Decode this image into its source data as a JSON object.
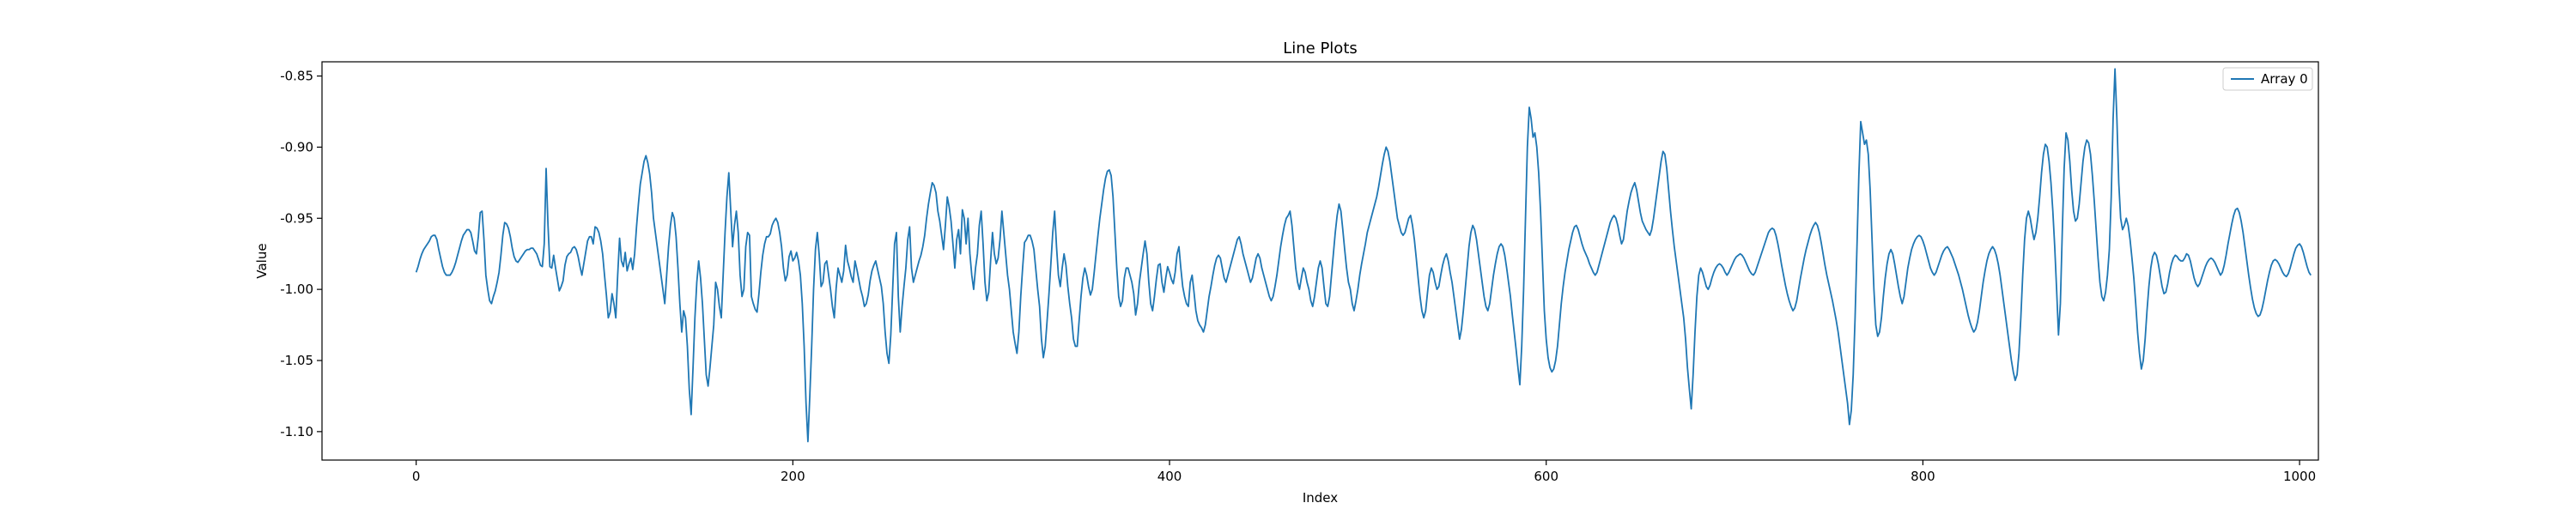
{
  "chart_data": {
    "type": "line",
    "title": "Line Plots",
    "xlabel": "Index",
    "ylabel": "Value",
    "xlim": [
      -50,
      1010
    ],
    "ylim": [
      -1.12,
      -0.84
    ],
    "xticks": [
      0,
      200,
      400,
      600,
      800,
      1000
    ],
    "yticks": [
      -1.1,
      -1.05,
      -1.0,
      -0.95,
      -0.9,
      -0.85
    ],
    "grid": false,
    "legend_position": "top-right",
    "colors": {
      "series": "#1f77b4",
      "axis": "#000000",
      "background": "#ffffff"
    },
    "series": [
      {
        "name": "Array 0",
        "x_start": 0,
        "x_step": 1,
        "values": [
          -0.988,
          -0.984,
          -0.979,
          -0.975,
          -0.972,
          -0.97,
          -0.968,
          -0.966,
          -0.963,
          -0.962,
          -0.962,
          -0.965,
          -0.972,
          -0.978,
          -0.984,
          -0.988,
          -0.99,
          -0.99,
          -0.99,
          -0.988,
          -0.985,
          -0.981,
          -0.976,
          -0.971,
          -0.966,
          -0.962,
          -0.96,
          -0.958,
          -0.958,
          -0.96,
          -0.966,
          -0.973,
          -0.975,
          -0.963,
          -0.946,
          -0.945,
          -0.965,
          -0.99,
          -1.0,
          -1.008,
          -1.01,
          -1.005,
          -1.001,
          -0.995,
          -0.988,
          -0.976,
          -0.962,
          -0.953,
          -0.954,
          -0.957,
          -0.963,
          -0.971,
          -0.977,
          -0.98,
          -0.981,
          -0.979,
          -0.977,
          -0.975,
          -0.973,
          -0.972,
          -0.972,
          -0.971,
          -0.971,
          -0.973,
          -0.975,
          -0.979,
          -0.983,
          -0.984,
          -0.968,
          -0.915,
          -0.955,
          -0.984,
          -0.985,
          -0.976,
          -0.985,
          -0.993,
          -1.001,
          -0.998,
          -0.994,
          -0.983,
          -0.977,
          -0.975,
          -0.974,
          -0.971,
          -0.97,
          -0.972,
          -0.977,
          -0.984,
          -0.99,
          -0.982,
          -0.974,
          -0.966,
          -0.963,
          -0.963,
          -0.968,
          -0.956,
          -0.957,
          -0.96,
          -0.966,
          -0.975,
          -0.99,
          -1.004,
          -1.02,
          -1.016,
          -1.003,
          -1.01,
          -1.02,
          -0.99,
          -0.964,
          -0.98,
          -0.984,
          -0.974,
          -0.987,
          -0.982,
          -0.978,
          -0.986,
          -0.975,
          -0.956,
          -0.94,
          -0.926,
          -0.918,
          -0.91,
          -0.906,
          -0.911,
          -0.919,
          -0.932,
          -0.95,
          -0.96,
          -0.97,
          -0.98,
          -0.99,
          -1.0,
          -1.01,
          -0.99,
          -0.97,
          -0.955,
          -0.946,
          -0.95,
          -0.963,
          -0.985,
          -1.01,
          -1.03,
          -1.015,
          -1.02,
          -1.04,
          -1.07,
          -1.088,
          -1.055,
          -1.02,
          -0.995,
          -0.98,
          -0.992,
          -1.01,
          -1.035,
          -1.06,
          -1.068,
          -1.055,
          -1.04,
          -1.025,
          -0.995,
          -1.0,
          -1.012,
          -1.02,
          -0.99,
          -0.96,
          -0.935,
          -0.918,
          -0.944,
          -0.97,
          -0.955,
          -0.945,
          -0.96,
          -0.99,
          -1.005,
          -1.0,
          -0.97,
          -0.96,
          -0.962,
          -1.005,
          -1.01,
          -1.014,
          -1.016,
          -1.003,
          -0.988,
          -0.976,
          -0.968,
          -0.963,
          -0.963,
          -0.961,
          -0.955,
          -0.952,
          -0.95,
          -0.953,
          -0.96,
          -0.97,
          -0.985,
          -0.994,
          -0.99,
          -0.977,
          -0.973,
          -0.98,
          -0.978,
          -0.974,
          -0.98,
          -0.99,
          -1.01,
          -1.04,
          -1.08,
          -1.107,
          -1.075,
          -1.04,
          -1.0,
          -0.972,
          -0.96,
          -0.976,
          -0.998,
          -0.995,
          -0.982,
          -0.98,
          -0.99,
          -1.0,
          -1.012,
          -1.02,
          -0.999,
          -0.985,
          -0.99,
          -0.995,
          -0.987,
          -0.969,
          -0.98,
          -0.985,
          -0.991,
          -0.995,
          -0.98,
          -0.986,
          -0.993,
          -1.0,
          -1.005,
          -1.012,
          -1.01,
          -1.004,
          -0.994,
          -0.987,
          -0.983,
          -0.98,
          -0.986,
          -0.992,
          -0.998,
          -1.01,
          -1.03,
          -1.045,
          -1.052,
          -1.032,
          -1.0,
          -0.968,
          -0.96,
          -1.005,
          -1.03,
          -1.012,
          -0.998,
          -0.985,
          -0.965,
          -0.956,
          -0.985,
          -0.995,
          -0.99,
          -0.985,
          -0.98,
          -0.976,
          -0.97,
          -0.962,
          -0.95,
          -0.94,
          -0.932,
          -0.925,
          -0.927,
          -0.932,
          -0.945,
          -0.952,
          -0.962,
          -0.972,
          -0.955,
          -0.935,
          -0.942,
          -0.952,
          -0.968,
          -0.985,
          -0.965,
          -0.958,
          -0.975,
          -0.944,
          -0.95,
          -0.968,
          -0.95,
          -0.975,
          -0.99,
          -1.0,
          -0.985,
          -0.975,
          -0.955,
          -0.945,
          -0.968,
          -0.995,
          -1.008,
          -1.002,
          -0.98,
          -0.96,
          -0.975,
          -0.982,
          -0.978,
          -0.965,
          -0.945,
          -0.96,
          -0.975,
          -0.99,
          -1.0,
          -1.015,
          -1.03,
          -1.038,
          -1.045,
          -1.03,
          -1.005,
          -0.985,
          -0.967,
          -0.965,
          -0.962,
          -0.962,
          -0.966,
          -0.972,
          -0.986,
          -1.0,
          -1.012,
          -1.035,
          -1.048,
          -1.04,
          -1.022,
          -1.003,
          -0.982,
          -0.96,
          -0.945,
          -0.97,
          -0.99,
          -0.998,
          -0.985,
          -0.975,
          -0.983,
          -0.998,
          -1.01,
          -1.02,
          -1.035,
          -1.04,
          -1.04,
          -1.022,
          -1.005,
          -0.992,
          -0.985,
          -0.99,
          -0.998,
          -1.004,
          -1.0,
          -0.988,
          -0.975,
          -0.962,
          -0.95,
          -0.94,
          -0.93,
          -0.922,
          -0.917,
          -0.916,
          -0.92,
          -0.935,
          -0.96,
          -0.985,
          -1.005,
          -1.012,
          -1.008,
          -0.992,
          -0.985,
          -0.985,
          -0.99,
          -0.995,
          -1.003,
          -1.018,
          -1.01,
          -0.995,
          -0.985,
          -0.975,
          -0.966,
          -0.975,
          -0.995,
          -1.01,
          -1.015,
          -1.005,
          -0.993,
          -0.983,
          -0.982,
          -0.995,
          -1.002,
          -0.992,
          -0.984,
          -0.988,
          -0.993,
          -0.996,
          -0.988,
          -0.975,
          -0.97,
          -0.985,
          -0.998,
          -1.005,
          -1.01,
          -1.012,
          -0.995,
          -0.99,
          -1.002,
          -1.015,
          -1.022,
          -1.025,
          -1.027,
          -1.03,
          -1.025,
          -1.015,
          -1.005,
          -0.998,
          -0.99,
          -0.983,
          -0.978,
          -0.976,
          -0.978,
          -0.985,
          -0.992,
          -0.995,
          -0.99,
          -0.985,
          -0.98,
          -0.975,
          -0.97,
          -0.965,
          -0.963,
          -0.968,
          -0.975,
          -0.98,
          -0.985,
          -0.99,
          -0.995,
          -0.992,
          -0.985,
          -0.978,
          -0.975,
          -0.978,
          -0.985,
          -0.99,
          -0.995,
          -1.0,
          -1.005,
          -1.008,
          -1.005,
          -0.998,
          -0.99,
          -0.98,
          -0.97,
          -0.962,
          -0.955,
          -0.95,
          -0.948,
          -0.945,
          -0.955,
          -0.97,
          -0.985,
          -0.995,
          -1.0,
          -0.992,
          -0.985,
          -0.988,
          -0.995,
          -1.0,
          -1.008,
          -1.012,
          -1.005,
          -0.995,
          -0.985,
          -0.98,
          -0.985,
          -0.998,
          -1.01,
          -1.012,
          -1.005,
          -0.99,
          -0.975,
          -0.96,
          -0.948,
          -0.94,
          -0.945,
          -0.958,
          -0.972,
          -0.985,
          -0.995,
          -1.0,
          -1.01,
          -1.015,
          -1.008,
          -1.0,
          -0.99,
          -0.982,
          -0.975,
          -0.968,
          -0.96,
          -0.955,
          -0.95,
          -0.945,
          -0.94,
          -0.935,
          -0.928,
          -0.92,
          -0.912,
          -0.905,
          -0.9,
          -0.903,
          -0.91,
          -0.92,
          -0.93,
          -0.94,
          -0.95,
          -0.955,
          -0.96,
          -0.962,
          -0.96,
          -0.955,
          -0.95,
          -0.948,
          -0.955,
          -0.965,
          -0.978,
          -0.992,
          -1.005,
          -1.015,
          -1.02,
          -1.015,
          -1.002,
          -0.99,
          -0.985,
          -0.988,
          -0.995,
          -1.0,
          -0.998,
          -0.99,
          -0.983,
          -0.978,
          -0.975,
          -0.98,
          -0.988,
          -0.995,
          -1.005,
          -1.015,
          -1.025,
          -1.035,
          -1.028,
          -1.015,
          -1.0,
          -0.985,
          -0.97,
          -0.96,
          -0.955,
          -0.958,
          -0.965,
          -0.975,
          -0.985,
          -0.995,
          -1.005,
          -1.012,
          -1.015,
          -1.01,
          -1.0,
          -0.99,
          -0.982,
          -0.975,
          -0.97,
          -0.968,
          -0.97,
          -0.976,
          -0.985,
          -0.995,
          -1.005,
          -1.018,
          -1.03,
          -1.042,
          -1.055,
          -1.067,
          -1.04,
          -1.0,
          -0.95,
          -0.9,
          -0.872,
          -0.88,
          -0.893,
          -0.89,
          -0.9,
          -0.918,
          -0.945,
          -0.98,
          -1.015,
          -1.035,
          -1.048,
          -1.055,
          -1.058,
          -1.056,
          -1.05,
          -1.04,
          -1.025,
          -1.01,
          -0.998,
          -0.988,
          -0.98,
          -0.972,
          -0.966,
          -0.96,
          -0.956,
          -0.955,
          -0.958,
          -0.963,
          -0.968,
          -0.972,
          -0.975,
          -0.978,
          -0.982,
          -0.985,
          -0.988,
          -0.99,
          -0.988,
          -0.983,
          -0.978,
          -0.973,
          -0.968,
          -0.963,
          -0.958,
          -0.953,
          -0.95,
          -0.948,
          -0.95,
          -0.955,
          -0.962,
          -0.968,
          -0.965,
          -0.955,
          -0.945,
          -0.938,
          -0.932,
          -0.928,
          -0.925,
          -0.93,
          -0.938,
          -0.946,
          -0.952,
          -0.955,
          -0.958,
          -0.96,
          -0.962,
          -0.958,
          -0.95,
          -0.94,
          -0.93,
          -0.92,
          -0.91,
          -0.903,
          -0.905,
          -0.915,
          -0.93,
          -0.945,
          -0.958,
          -0.97,
          -0.98,
          -0.99,
          -1.0,
          -1.01,
          -1.02,
          -1.035,
          -1.055,
          -1.07,
          -1.084,
          -1.06,
          -1.03,
          -1.005,
          -0.99,
          -0.985,
          -0.988,
          -0.993,
          -0.998,
          -1.0,
          -0.997,
          -0.992,
          -0.988,
          -0.985,
          -0.983,
          -0.982,
          -0.983,
          -0.985,
          -0.988,
          -0.99,
          -0.988,
          -0.985,
          -0.982,
          -0.979,
          -0.977,
          -0.976,
          -0.975,
          -0.976,
          -0.978,
          -0.981,
          -0.984,
          -0.987,
          -0.989,
          -0.99,
          -0.988,
          -0.984,
          -0.98,
          -0.976,
          -0.972,
          -0.968,
          -0.964,
          -0.96,
          -0.958,
          -0.957,
          -0.958,
          -0.962,
          -0.968,
          -0.975,
          -0.983,
          -0.99,
          -0.997,
          -1.003,
          -1.008,
          -1.012,
          -1.015,
          -1.013,
          -1.008,
          -1.0,
          -0.992,
          -0.985,
          -0.978,
          -0.972,
          -0.967,
          -0.962,
          -0.958,
          -0.955,
          -0.953,
          -0.955,
          -0.96,
          -0.967,
          -0.975,
          -0.983,
          -0.99,
          -0.996,
          -1.002,
          -1.008,
          -1.015,
          -1.022,
          -1.03,
          -1.04,
          -1.05,
          -1.06,
          -1.07,
          -1.08,
          -1.095,
          -1.085,
          -1.06,
          -1.02,
          -0.97,
          -0.92,
          -0.882,
          -0.89,
          -0.898,
          -0.895,
          -0.905,
          -0.93,
          -0.965,
          -1.0,
          -1.025,
          -1.033,
          -1.03,
          -1.02,
          -1.005,
          -0.992,
          -0.982,
          -0.975,
          -0.972,
          -0.975,
          -0.982,
          -0.99,
          -0.998,
          -1.005,
          -1.01,
          -1.005,
          -0.995,
          -0.985,
          -0.978,
          -0.972,
          -0.968,
          -0.965,
          -0.963,
          -0.962,
          -0.963,
          -0.966,
          -0.97,
          -0.975,
          -0.98,
          -0.985,
          -0.988,
          -0.99,
          -0.988,
          -0.984,
          -0.98,
          -0.976,
          -0.973,
          -0.971,
          -0.97,
          -0.972,
          -0.975,
          -0.978,
          -0.982,
          -0.986,
          -0.99,
          -0.995,
          -1.0,
          -1.006,
          -1.012,
          -1.018,
          -1.023,
          -1.027,
          -1.03,
          -1.028,
          -1.023,
          -1.015,
          -1.005,
          -0.995,
          -0.987,
          -0.98,
          -0.975,
          -0.972,
          -0.97,
          -0.972,
          -0.976,
          -0.982,
          -0.99,
          -1.0,
          -1.01,
          -1.02,
          -1.03,
          -1.04,
          -1.05,
          -1.058,
          -1.064,
          -1.06,
          -1.045,
          -1.02,
          -0.99,
          -0.965,
          -0.95,
          -0.945,
          -0.95,
          -0.958,
          -0.965,
          -0.96,
          -0.95,
          -0.935,
          -0.918,
          -0.905,
          -0.898,
          -0.9,
          -0.91,
          -0.925,
          -0.945,
          -0.97,
          -1.0,
          -1.032,
          -1.01,
          -0.96,
          -0.915,
          -0.89,
          -0.895,
          -0.91,
          -0.93,
          -0.945,
          -0.952,
          -0.95,
          -0.94,
          -0.925,
          -0.91,
          -0.9,
          -0.895,
          -0.897,
          -0.905,
          -0.92,
          -0.938,
          -0.958,
          -0.978,
          -0.995,
          -1.005,
          -1.008,
          -1.002,
          -0.99,
          -0.972,
          -0.935,
          -0.88,
          -0.845,
          -0.88,
          -0.925,
          -0.95,
          -0.958,
          -0.955,
          -0.95,
          -0.955,
          -0.965,
          -0.978,
          -0.992,
          -1.01,
          -1.03,
          -1.045,
          -1.056,
          -1.05,
          -1.035,
          -1.015,
          -0.998,
          -0.985,
          -0.977,
          -0.974,
          -0.976,
          -0.982,
          -0.99,
          -0.998,
          -1.003,
          -1.002,
          -0.996,
          -0.988,
          -0.982,
          -0.978,
          -0.976,
          -0.977,
          -0.979,
          -0.98,
          -0.98,
          -0.978,
          -0.975,
          -0.976,
          -0.98,
          -0.986,
          -0.992,
          -0.996,
          -0.998,
          -0.996,
          -0.992,
          -0.988,
          -0.984,
          -0.981,
          -0.979,
          -0.978,
          -0.979,
          -0.981,
          -0.984,
          -0.987,
          -0.99,
          -0.988,
          -0.983,
          -0.976,
          -0.968,
          -0.961,
          -0.954,
          -0.948,
          -0.944,
          -0.943,
          -0.946,
          -0.952,
          -0.96,
          -0.97,
          -0.98,
          -0.99,
          -0.999,
          -1.007,
          -1.013,
          -1.017,
          -1.019,
          -1.018,
          -1.014,
          -1.008,
          -1.001,
          -0.994,
          -0.988,
          -0.983,
          -0.98,
          -0.979,
          -0.98,
          -0.982,
          -0.985,
          -0.988,
          -0.99,
          -0.991,
          -0.989,
          -0.985,
          -0.98,
          -0.975,
          -0.971,
          -0.969,
          -0.968,
          -0.97,
          -0.974,
          -0.979,
          -0.984,
          -0.988,
          -0.99
        ]
      }
    ]
  }
}
